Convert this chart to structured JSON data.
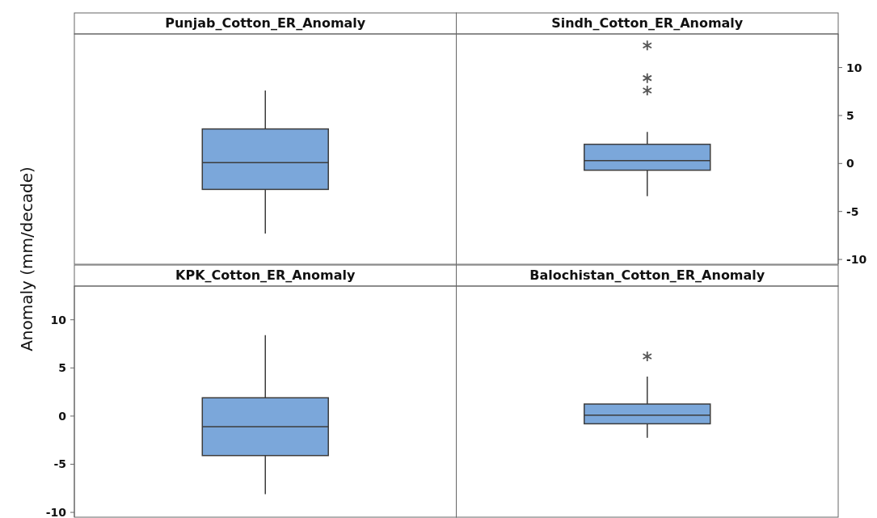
{
  "chart_data": [
    {
      "type": "box",
      "categories": [
        "Punjab_Cotton_ER_Anomaly",
        "Sindh_Cotton_ER_Anomaly"
      ],
      "color": "#7ba7da",
      "boxes": [
        {
          "low": -7.3,
          "q1": -2.7,
          "median": 0.1,
          "q3": 3.6,
          "high": 7.6
        },
        {
          "low": -3.4,
          "q1": -0.7,
          "median": 0.3,
          "q3": 2.0,
          "high": 3.3,
          "outliers": [
            12.3,
            8.9,
            7.6
          ]
        }
      ],
      "ylim": [
        -10.5,
        13.5
      ],
      "yticks": [
        -10,
        -5,
        0,
        5,
        10
      ]
    },
    {
      "type": "box",
      "ylabel": "Anomaly (mm/decade)",
      "categories": [
        "KPK_Cotton_ER_Anomaly",
        "Balochistan_Cotton_ER_Anomaly"
      ],
      "color": "#7ba7da",
      "boxes": [
        {
          "low": -8.1,
          "q1": -4.1,
          "median": -1.1,
          "q3": 1.9,
          "high": 8.4
        },
        {
          "low": -2.25,
          "q1": -0.8,
          "median": 0.1,
          "q3": 1.25,
          "high": 4.1,
          "outliers": [
            6.2
          ]
        }
      ],
      "ylim": [
        -10.5,
        13.5
      ],
      "yticks": [
        -10,
        -5,
        0,
        5,
        10
      ]
    }
  ]
}
